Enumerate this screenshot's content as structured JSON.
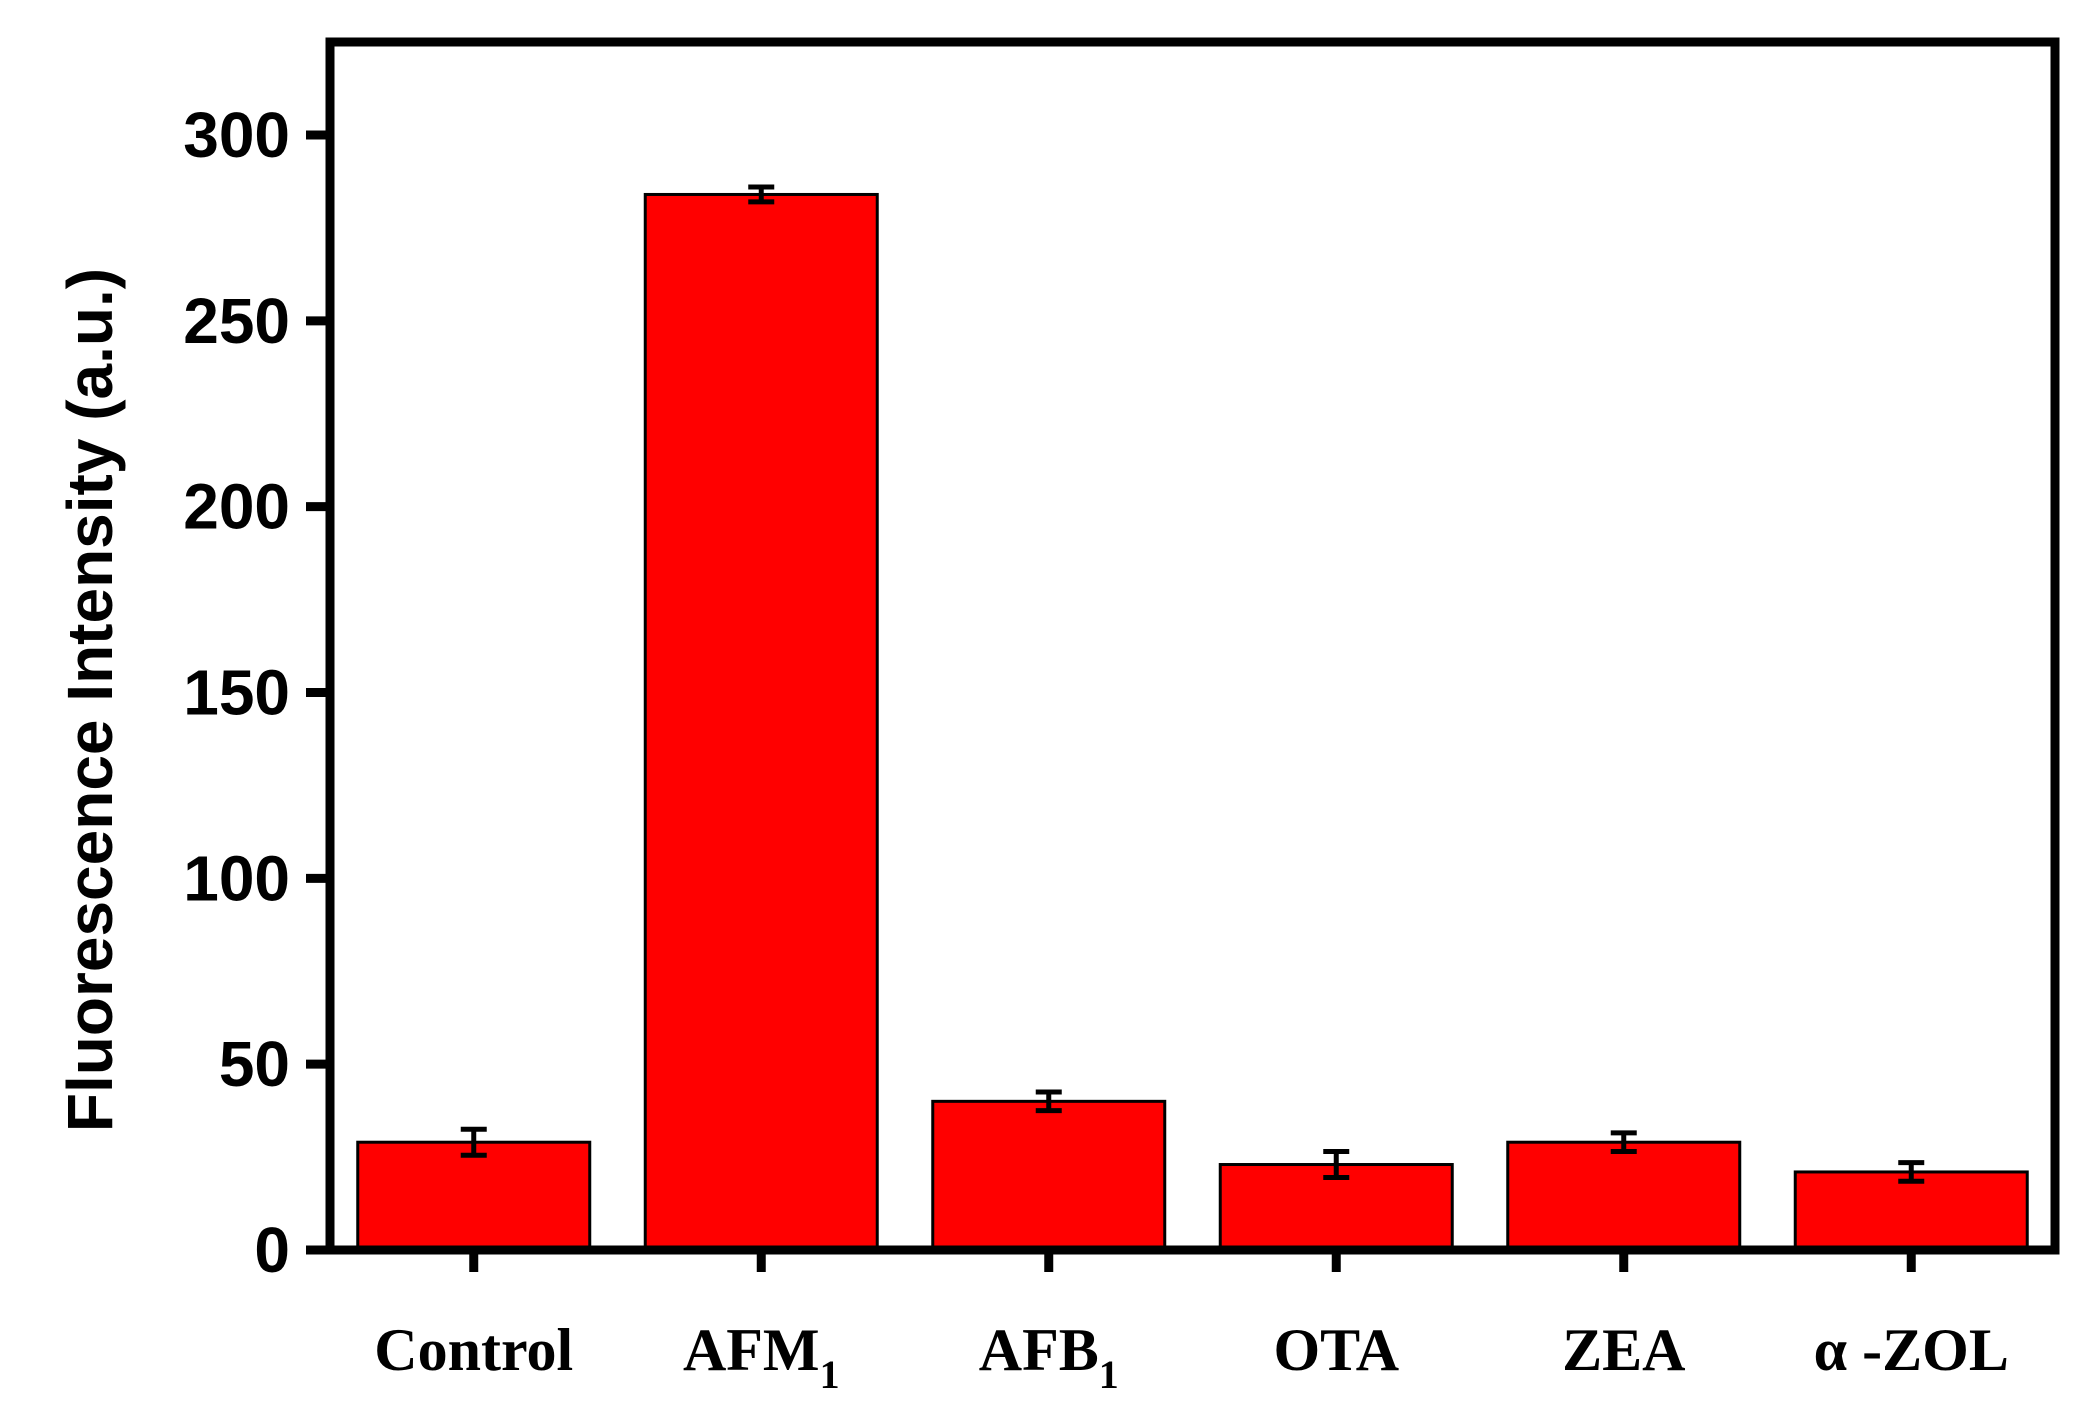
{
  "chart_data": {
    "type": "bar",
    "title": "",
    "xlabel": "",
    "ylabel": "Fluorescence Intensity (a.u.)",
    "ylim": [
      0,
      325
    ],
    "yticks": [
      0,
      50,
      100,
      150,
      200,
      250,
      300
    ],
    "categories": [
      {
        "label": "Control",
        "sub": ""
      },
      {
        "label": "AFM",
        "sub": "1"
      },
      {
        "label": "AFB",
        "sub": "1"
      },
      {
        "label": "OTA",
        "sub": ""
      },
      {
        "label": "ZEA",
        "sub": ""
      },
      {
        "label": "α -ZOL",
        "sub": ""
      }
    ],
    "values": [
      29,
      284,
      40,
      23,
      29,
      21
    ],
    "errors": [
      3.5,
      2.0,
      2.5,
      3.5,
      2.5,
      2.5
    ],
    "bar_color": "#ff0000",
    "grid": false,
    "legend": "none"
  }
}
